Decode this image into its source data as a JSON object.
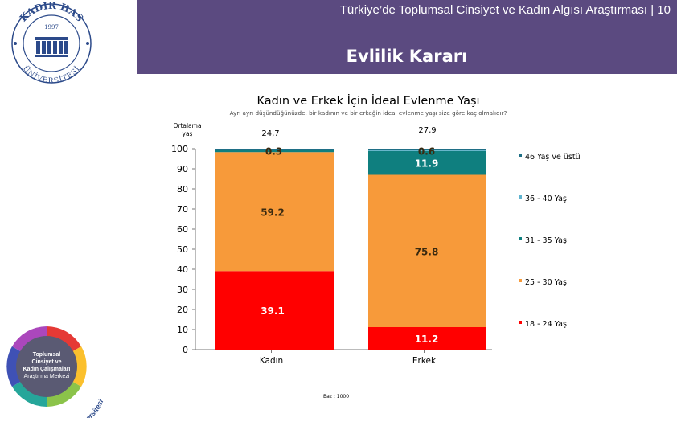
{
  "header": {
    "title": "Türkiye’de Toplumsal Cinsiyet ve Kadın Algısı Araştırması | 10",
    "section": "Evlilik Kararı"
  },
  "logos": {
    "university": "KADIR HAS ÜNİVERSİTESİ",
    "university_year": "1997",
    "center_lines": [
      "Toplumsal",
      "Cinsiyet ve",
      "Kadın Çalışmaları",
      "Araştırma Merkezi"
    ],
    "center_ring": "Kadir Has Üniversitesi"
  },
  "colors": {
    "header_bg": "#5b4a80",
    "18-24": "#ff0000",
    "25-30": "#f79a3a",
    "31-35": "#0f7f7f",
    "36-40": "#5fb3cf",
    "46+": "#1f6f86"
  },
  "chart_data": {
    "type": "bar",
    "stacked": true,
    "title": "Kadın ve Erkek İçin İdeal Evlenme Yaşı",
    "subtitle": "Ayrı ayrı düşündüğünüzde, bir kadının ve bir erkeğin ideal evlenme yaşı size göre kaç olmalıdır?",
    "average_label": "Ortalama yaş",
    "averages": [
      "24,7",
      "27,9"
    ],
    "categories": [
      "Kadın",
      "Erkek"
    ],
    "ylim": [
      0,
      100
    ],
    "yticks": [
      0,
      10,
      20,
      30,
      40,
      50,
      60,
      70,
      80,
      90,
      100
    ],
    "series": [
      {
        "name": "18 - 24 Yaş",
        "key": "18-24",
        "values": [
          39.1,
          11.2
        ],
        "labels": [
          "39.1",
          "11.2"
        ]
      },
      {
        "name": "25 - 30 Yaş",
        "key": "25-30",
        "values": [
          59.2,
          75.8
        ],
        "labels": [
          "59.2",
          "75.8"
        ]
      },
      {
        "name": "31 - 35 Yaş",
        "key": "31-35",
        "values": [
          0.9,
          11.9
        ],
        "labels": [
          "",
          "11.9"
        ]
      },
      {
        "name": "36 - 40 Yaş",
        "key": "36-40",
        "values": [
          0.3,
          0.6
        ],
        "labels": [
          "0.3",
          "0.6"
        ]
      },
      {
        "name": "46 Yaş ve üstü",
        "key": "46+",
        "values": [
          0.5,
          0.5
        ],
        "labels": [
          "",
          ""
        ]
      }
    ],
    "legend": [
      "46 Yaş ve üstü",
      "36 - 40 Yaş",
      "31 - 35 Yaş",
      "25 - 30 Yaş",
      "18 - 24 Yaş"
    ],
    "legend_position": "right",
    "base_note": "Baz : 1000"
  }
}
